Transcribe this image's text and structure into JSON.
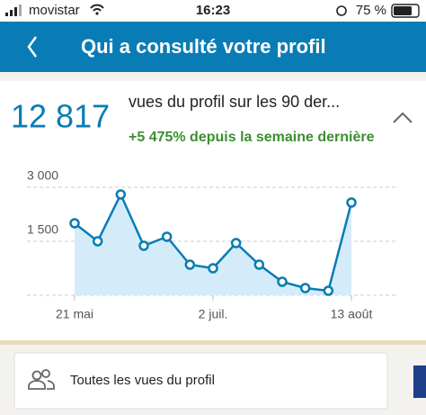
{
  "status_bar": {
    "carrier": "movistar",
    "time": "16:23",
    "battery": "75 %"
  },
  "header": {
    "title": "Qui a consulté votre profil"
  },
  "summary": {
    "total": "12 817",
    "description": "vues du profil sur les 90 der...",
    "change": "+5 475% depuis la semaine dernière"
  },
  "chart_data": {
    "type": "line",
    "categories": [
      "21 mai",
      null,
      null,
      null,
      null,
      null,
      "2 juil.",
      null,
      null,
      null,
      null,
      null,
      "13 août"
    ],
    "values": [
      2000,
      1500,
      2800,
      1375,
      1625,
      850,
      750,
      1450,
      850,
      375,
      200,
      125,
      2575
    ],
    "color": "#0a7cb5",
    "area_color": "#d4ecf9",
    "ylim": [
      0,
      3300
    ],
    "yticks": [
      {
        "value": 1500,
        "label": "1 500"
      },
      {
        "value": 3000,
        "label": "3 000"
      }
    ],
    "grid": true
  },
  "footer": {
    "link": "Toutes les vues du profil"
  }
}
